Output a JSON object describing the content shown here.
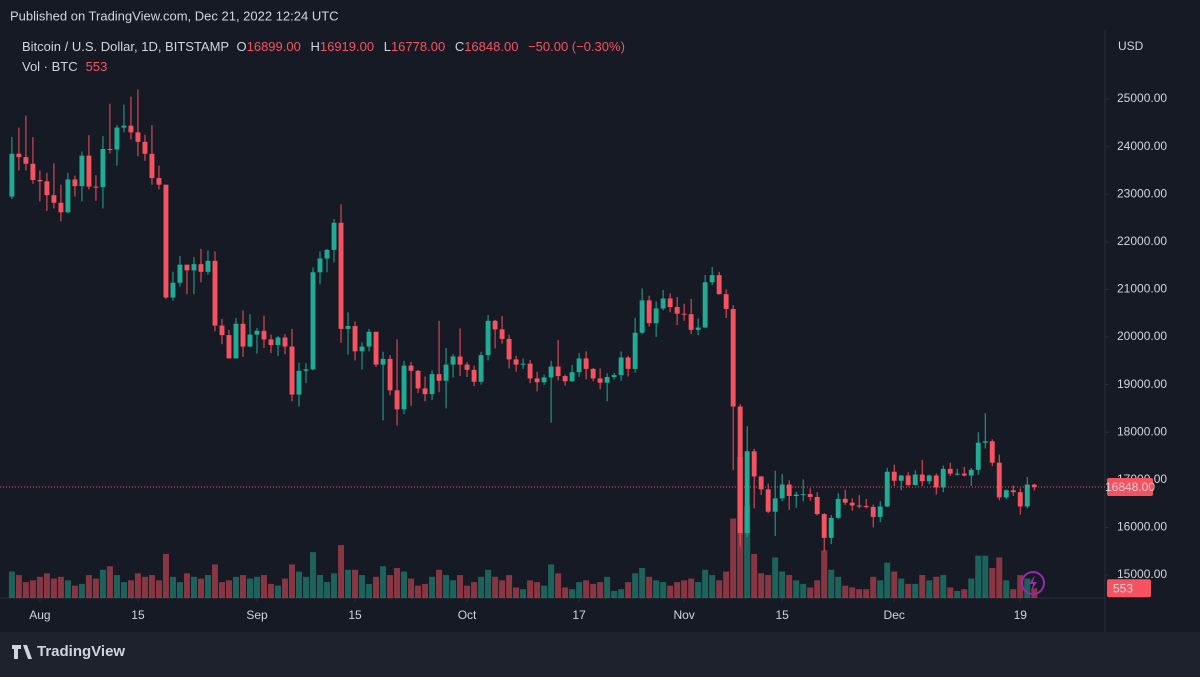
{
  "published": "Published on TradingView.com, Dec 21, 2022 12:24 UTC",
  "brand": "TradingView",
  "chart_data": {
    "type": "candlestick",
    "symbol": "Bitcoin / U.S. Dollar, 1D, BITSTAMP",
    "legend": {
      "o_label": "O",
      "o": "16899.00",
      "h_label": "H",
      "h": "16919.00",
      "l_label": "L",
      "l": "16778.00",
      "c_label": "C",
      "c": "16848.00",
      "change": "−50.00 (−0.30%)"
    },
    "volume_label": "Vol · BTC",
    "volume_last_label": "553",
    "last_price_label": "16848.00",
    "currency": "USD",
    "up_color": "#22ab94",
    "down_color": "#f7525f",
    "grid": false,
    "xlim": [
      -1.7,
      156.1
    ],
    "xticks": [
      {
        "value": 4,
        "label": "Aug"
      },
      {
        "value": 18,
        "label": "15"
      },
      {
        "value": 35,
        "label": "Sep"
      },
      {
        "value": 49,
        "label": "15"
      },
      {
        "value": 65,
        "label": "Oct"
      },
      {
        "value": 81,
        "label": "17"
      },
      {
        "value": 96,
        "label": "Nov"
      },
      {
        "value": 110,
        "label": "15"
      },
      {
        "value": 126,
        "label": "Dec"
      },
      {
        "value": 144,
        "label": "19"
      }
    ],
    "ylim": [
      14517,
      26324
    ],
    "yticks": [
      {
        "value": 15000,
        "label": "15000.00"
      },
      {
        "value": 16000,
        "label": "16000.00"
      },
      {
        "value": 17000,
        "label": "17000.00"
      },
      {
        "value": 18000,
        "label": "18000.00"
      },
      {
        "value": 19000,
        "label": "19000.00"
      },
      {
        "value": 20000,
        "label": "20000.00"
      },
      {
        "value": 21000,
        "label": "21000.00"
      },
      {
        "value": 22000,
        "label": "22000.00"
      },
      {
        "value": 23000,
        "label": "23000.00"
      },
      {
        "value": 24000,
        "label": "24000.00"
      },
      {
        "value": 25000,
        "label": "25000.00"
      }
    ],
    "y2lim": [
      0,
      8500
    ],
    "candles": [
      [
        22950,
        24200,
        22900,
        23850
      ],
      [
        23850,
        24400,
        23500,
        23780
      ],
      [
        23780,
        24650,
        23500,
        23640
      ],
      [
        23640,
        24200,
        23220,
        23300
      ],
      [
        23300,
        23500,
        22850,
        23270
      ],
      [
        23270,
        23450,
        22650,
        22980
      ],
      [
        22980,
        23650,
        22700,
        22820
      ],
      [
        22820,
        23200,
        22430,
        22620
      ],
      [
        22620,
        23450,
        22600,
        23310
      ],
      [
        23310,
        23390,
        22950,
        23170
      ],
      [
        23170,
        23900,
        22850,
        23810
      ],
      [
        23810,
        24240,
        23100,
        23160
      ],
      [
        23160,
        23400,
        22860,
        23150
      ],
      [
        23150,
        24220,
        22700,
        23950
      ],
      [
        23950,
        24900,
        23860,
        23940
      ],
      [
        23940,
        24450,
        23600,
        24400
      ],
      [
        24400,
        24880,
        24300,
        24440
      ],
      [
        24440,
        25050,
        24150,
        24300
      ],
      [
        24300,
        25200,
        23800,
        24100
      ],
      [
        24100,
        24250,
        23700,
        23850
      ],
      [
        23850,
        24450,
        23200,
        23340
      ],
      [
        23340,
        23600,
        23100,
        23200
      ],
      [
        23200,
        23200,
        20800,
        20830
      ],
      [
        20830,
        21370,
        20760,
        21140
      ],
      [
        21140,
        21700,
        21060,
        21520
      ],
      [
        21520,
        21520,
        20900,
        21400
      ],
      [
        21400,
        21680,
        20900,
        21530
      ],
      [
        21530,
        21850,
        21150,
        21370
      ],
      [
        21370,
        21820,
        21310,
        21600
      ],
      [
        21600,
        21800,
        20120,
        20240
      ],
      [
        20240,
        20380,
        19850,
        20040
      ],
      [
        20040,
        20150,
        19550,
        19550
      ],
      [
        19550,
        20400,
        19550,
        20280
      ],
      [
        20280,
        20560,
        19580,
        19800
      ],
      [
        19800,
        20480,
        19790,
        20050
      ],
      [
        20050,
        20190,
        19650,
        20130
      ],
      [
        20130,
        20450,
        19770,
        19950
      ],
      [
        19950,
        20050,
        19660,
        19830
      ],
      [
        19830,
        20020,
        19600,
        19990
      ],
      [
        19990,
        20060,
        19640,
        19800
      ],
      [
        19800,
        20170,
        18650,
        18790
      ],
      [
        18790,
        19460,
        18540,
        19290
      ],
      [
        19290,
        19450,
        19030,
        19320
      ],
      [
        19320,
        21460,
        19300,
        21360
      ],
      [
        21360,
        21800,
        21110,
        21650
      ],
      [
        21650,
        21850,
        21360,
        21830
      ],
      [
        21830,
        22480,
        21570,
        22400
      ],
      [
        22400,
        22790,
        19880,
        20170
      ],
      [
        20170,
        20520,
        19630,
        20230
      ],
      [
        20230,
        20330,
        19510,
        19700
      ],
      [
        19700,
        19890,
        19320,
        19800
      ],
      [
        19800,
        20170,
        19700,
        20110
      ],
      [
        20110,
        20110,
        19370,
        19420
      ],
      [
        19420,
        19690,
        18250,
        19540
      ],
      [
        19540,
        19620,
        18780,
        18880
      ],
      [
        18880,
        19950,
        18140,
        18480
      ],
      [
        18480,
        19500,
        18380,
        19400
      ],
      [
        19400,
        19480,
        18550,
        19290
      ],
      [
        19290,
        19310,
        18820,
        18920
      ],
      [
        18920,
        19170,
        18650,
        18800
      ],
      [
        18800,
        19300,
        18680,
        19220
      ],
      [
        19220,
        20340,
        18840,
        19080
      ],
      [
        19080,
        19770,
        18500,
        19420
      ],
      [
        19420,
        19640,
        19150,
        19590
      ],
      [
        19590,
        20180,
        19180,
        19420
      ],
      [
        19420,
        19470,
        19160,
        19310
      ],
      [
        19310,
        19400,
        18970,
        19060
      ],
      [
        19060,
        19690,
        19000,
        19620
      ],
      [
        19620,
        20460,
        19510,
        20340
      ],
      [
        20340,
        20360,
        19760,
        20160
      ],
      [
        20160,
        20440,
        19860,
        19960
      ],
      [
        19960,
        20050,
        19340,
        19530
      ],
      [
        19530,
        19610,
        19270,
        19420
      ],
      [
        19420,
        19550,
        19330,
        19440
      ],
      [
        19440,
        19520,
        19030,
        19130
      ],
      [
        19130,
        19270,
        18860,
        19050
      ],
      [
        19050,
        19210,
        18990,
        19150
      ],
      [
        19150,
        19500,
        18200,
        19380
      ],
      [
        19380,
        19940,
        19090,
        19180
      ],
      [
        19180,
        19210,
        18980,
        19070
      ],
      [
        19070,
        19410,
        19060,
        19260
      ],
      [
        19260,
        19660,
        19160,
        19550
      ],
      [
        19550,
        19700,
        19110,
        19330
      ],
      [
        19330,
        19350,
        19070,
        19130
      ],
      [
        19130,
        19340,
        18900,
        19040
      ],
      [
        19040,
        19240,
        18650,
        19160
      ],
      [
        19160,
        19250,
        19110,
        19200
      ],
      [
        19200,
        19700,
        19080,
        19570
      ],
      [
        19570,
        19600,
        19170,
        19330
      ],
      [
        19330,
        20400,
        19250,
        20090
      ],
      [
        20090,
        21020,
        20060,
        20770
      ],
      [
        20770,
        20870,
        20220,
        20290
      ],
      [
        20290,
        20750,
        20000,
        20600
      ],
      [
        20600,
        20990,
        20560,
        20810
      ],
      [
        20810,
        20920,
        20520,
        20630
      ],
      [
        20630,
        20840,
        20250,
        20490
      ],
      [
        20490,
        20700,
        20340,
        20480
      ],
      [
        20480,
        20800,
        20060,
        20150
      ],
      [
        20150,
        20390,
        20040,
        20200
      ],
      [
        20200,
        21300,
        20190,
        21150
      ],
      [
        21150,
        21470,
        21090,
        21300
      ],
      [
        21300,
        21370,
        20890,
        20900
      ],
      [
        20900,
        21000,
        20400,
        20590
      ],
      [
        20590,
        20670,
        17200,
        18540
      ],
      [
        18540,
        18590,
        15600,
        15880
      ],
      [
        15880,
        18130,
        15790,
        17600
      ],
      [
        17600,
        17650,
        16400,
        17070
      ],
      [
        17070,
        17080,
        16680,
        16800
      ],
      [
        16800,
        16920,
        16300,
        16330
      ],
      [
        16330,
        17190,
        15820,
        16610
      ],
      [
        16610,
        17120,
        16550,
        16900
      ],
      [
        16900,
        16990,
        16370,
        16660
      ],
      [
        16660,
        16750,
        16410,
        16690
      ],
      [
        16690,
        17010,
        16550,
        16700
      ],
      [
        16700,
        16820,
        16560,
        16640
      ],
      [
        16640,
        16740,
        16250,
        16280
      ],
      [
        16280,
        16300,
        15500,
        15780
      ],
      [
        15780,
        16260,
        15650,
        16200
      ],
      [
        16200,
        16720,
        16170,
        16600
      ],
      [
        16600,
        16790,
        16470,
        16520
      ],
      [
        16520,
        16610,
        16350,
        16460
      ],
      [
        16460,
        16680,
        16400,
        16450
      ],
      [
        16450,
        16600,
        16400,
        16430
      ],
      [
        16430,
        16480,
        16000,
        16220
      ],
      [
        16220,
        16550,
        16110,
        16440
      ],
      [
        16440,
        17250,
        16430,
        17170
      ],
      [
        17170,
        17320,
        16870,
        16980
      ],
      [
        16980,
        17100,
        16780,
        17090
      ],
      [
        17090,
        17160,
        16860,
        16890
      ],
      [
        16890,
        17200,
        16880,
        17110
      ],
      [
        17110,
        17420,
        16870,
        16970
      ],
      [
        16970,
        17110,
        16910,
        17090
      ],
      [
        17090,
        17130,
        16690,
        16840
      ],
      [
        16840,
        17300,
        16740,
        17230
      ],
      [
        17230,
        17360,
        17080,
        17130
      ],
      [
        17130,
        17230,
        17090,
        17130
      ],
      [
        17130,
        17270,
        17070,
        17090
      ],
      [
        17090,
        17250,
        16870,
        17210
      ],
      [
        17210,
        18000,
        17100,
        17780
      ],
      [
        17780,
        18400,
        17660,
        17810
      ],
      [
        17810,
        17850,
        17290,
        17360
      ],
      [
        17360,
        17530,
        16570,
        16630
      ],
      [
        16630,
        16800,
        16590,
        16780
      ],
      [
        16780,
        16880,
        16660,
        16740
      ],
      [
        16740,
        16820,
        16270,
        16440
      ],
      [
        16440,
        17060,
        16400,
        16900
      ],
      [
        16899,
        16919,
        16778,
        16848
      ]
    ],
    "volume": [
      1500,
      1300,
      900,
      1000,
      1200,
      1400,
      1100,
      1200,
      1000,
      700,
      800,
      1300,
      1100,
      1600,
      1800,
      1300,
      900,
      1000,
      1400,
      1200,
      1300,
      1000,
      2500,
      1200,
      900,
      1400,
      1200,
      1100,
      1300,
      1900,
      900,
      1000,
      1200,
      1300,
      1100,
      1200,
      1300,
      800,
      700,
      1100,
      1900,
      1500,
      1200,
      2600,
      1300,
      900,
      1400,
      3000,
      1600,
      1600,
      1300,
      800,
      1200,
      1800,
      1300,
      1700,
      1500,
      1100,
      700,
      800,
      1200,
      1600,
      1300,
      1000,
      1300,
      700,
      900,
      1200,
      1600,
      1200,
      1000,
      1300,
      600,
      500,
      1000,
      900,
      700,
      1900,
      1400,
      600,
      500,
      900,
      1000,
      800,
      900,
      1200,
      400,
      500,
      900,
      1400,
      1700,
      1200,
      1000,
      900,
      700,
      900,
      1000,
      1100,
      900,
      1600,
      1300,
      1000,
      1500,
      4500,
      8000,
      5200,
      2500,
      1400,
      1300,
      2300,
      1500,
      1300,
      1000,
      800,
      600,
      1000,
      2700,
      1600,
      1200,
      700,
      600,
      500,
      500,
      1200,
      1000,
      2000,
      1500,
      1100,
      800,
      800,
      1300,
      1000,
      1200,
      1300,
      600,
      400,
      500,
      1100,
      2400,
      2400,
      1700,
      2300,
      1000,
      500,
      1300,
      1100,
      553
    ]
  }
}
